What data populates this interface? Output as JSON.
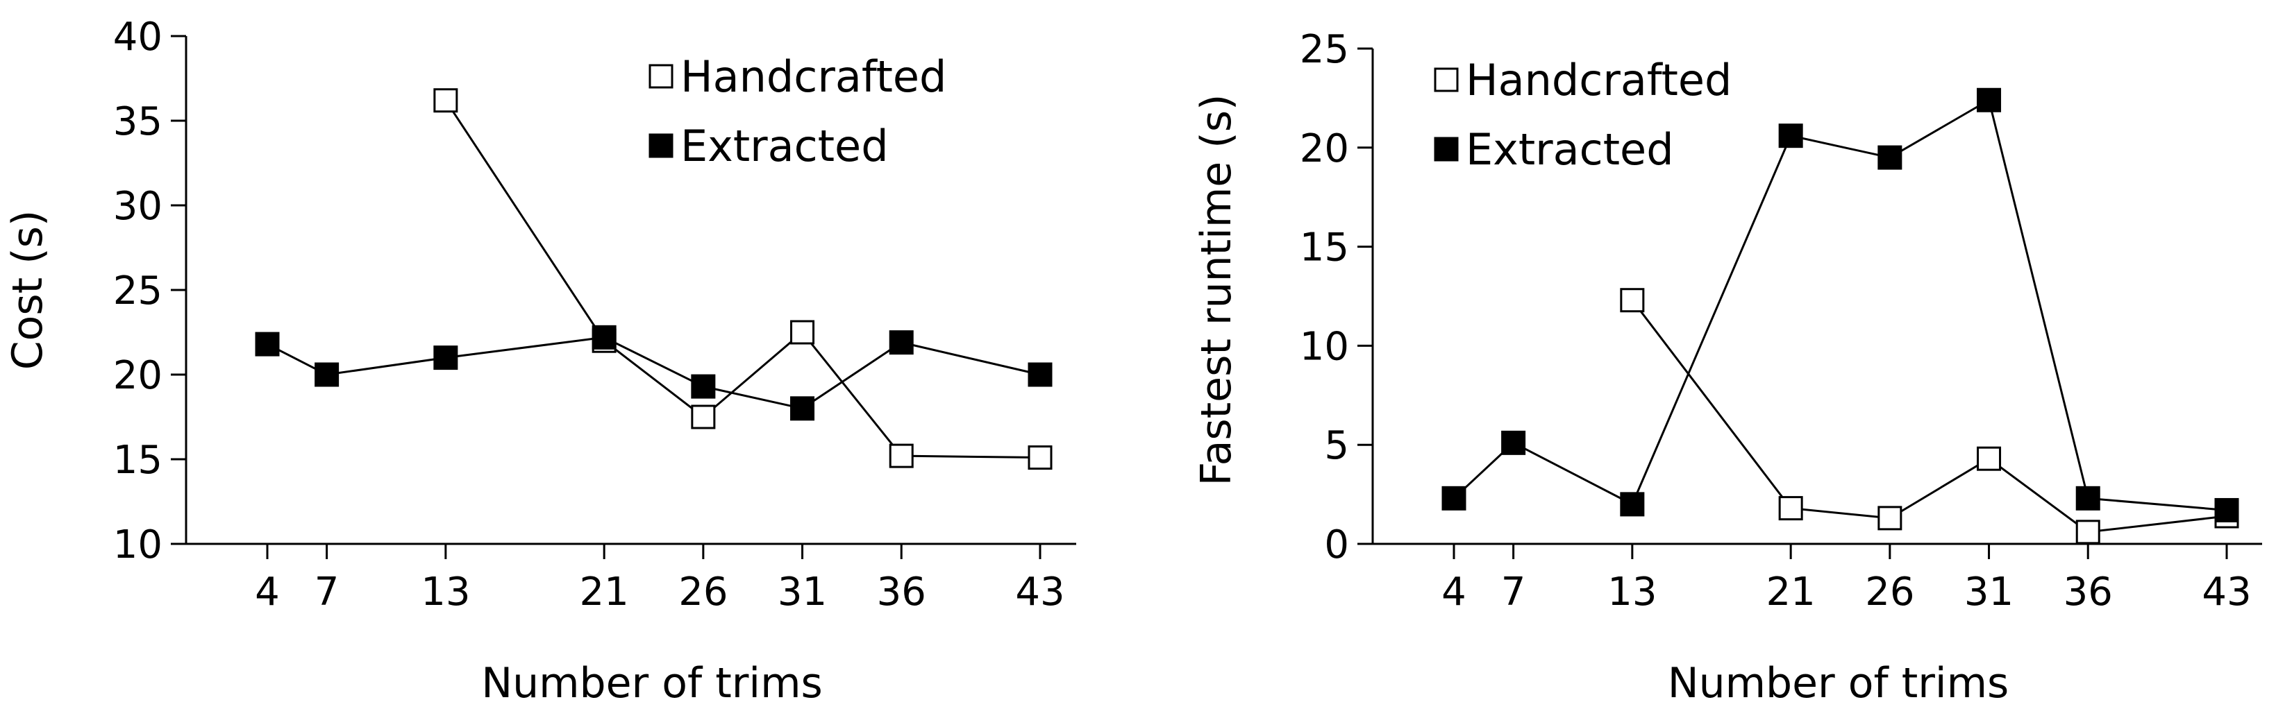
{
  "chart_data": [
    {
      "type": "line",
      "xlabel": "Number of trims",
      "ylabel": "Cost (s)",
      "ylim": [
        10,
        40
      ],
      "yticks": [
        10,
        15,
        20,
        25,
        30,
        35,
        40
      ],
      "x": [
        4,
        7,
        13,
        21,
        26,
        31,
        36,
        43
      ],
      "xticks": [
        "4",
        "7",
        "13",
        "21",
        "26",
        "31",
        "36",
        "43"
      ],
      "legend_position": "top-right",
      "series": [
        {
          "name": "Handcrafted",
          "marker": "open-square",
          "x": [
            13,
            21,
            26,
            31,
            36,
            43
          ],
          "values": [
            36.2,
            22.0,
            17.5,
            22.5,
            15.2,
            15.1
          ]
        },
        {
          "name": "Extracted",
          "marker": "filled-square",
          "x": [
            4,
            7,
            13,
            21,
            26,
            31,
            36,
            43
          ],
          "values": [
            21.8,
            20.0,
            21.0,
            22.2,
            19.3,
            18.0,
            21.9,
            20.0
          ]
        }
      ]
    },
    {
      "type": "line",
      "xlabel": "Number of trims",
      "ylabel": "Fastest runtime (s)",
      "ylim": [
        0,
        25
      ],
      "yticks": [
        0,
        5,
        10,
        15,
        20,
        25
      ],
      "x": [
        4,
        7,
        13,
        21,
        26,
        31,
        36,
        43
      ],
      "xticks": [
        "4",
        "7",
        "13",
        "21",
        "26",
        "31",
        "36",
        "43"
      ],
      "legend_position": "top-left",
      "series": [
        {
          "name": "Handcrafted",
          "marker": "open-square",
          "x": [
            13,
            21,
            26,
            31,
            36,
            43
          ],
          "values": [
            12.3,
            1.8,
            1.3,
            4.3,
            0.6,
            1.4
          ]
        },
        {
          "name": "Extracted",
          "marker": "filled-square",
          "x": [
            4,
            7,
            13,
            21,
            26,
            31,
            36,
            43
          ],
          "values": [
            2.3,
            5.1,
            2.0,
            20.6,
            19.5,
            22.4,
            2.3,
            1.7
          ]
        }
      ]
    }
  ]
}
